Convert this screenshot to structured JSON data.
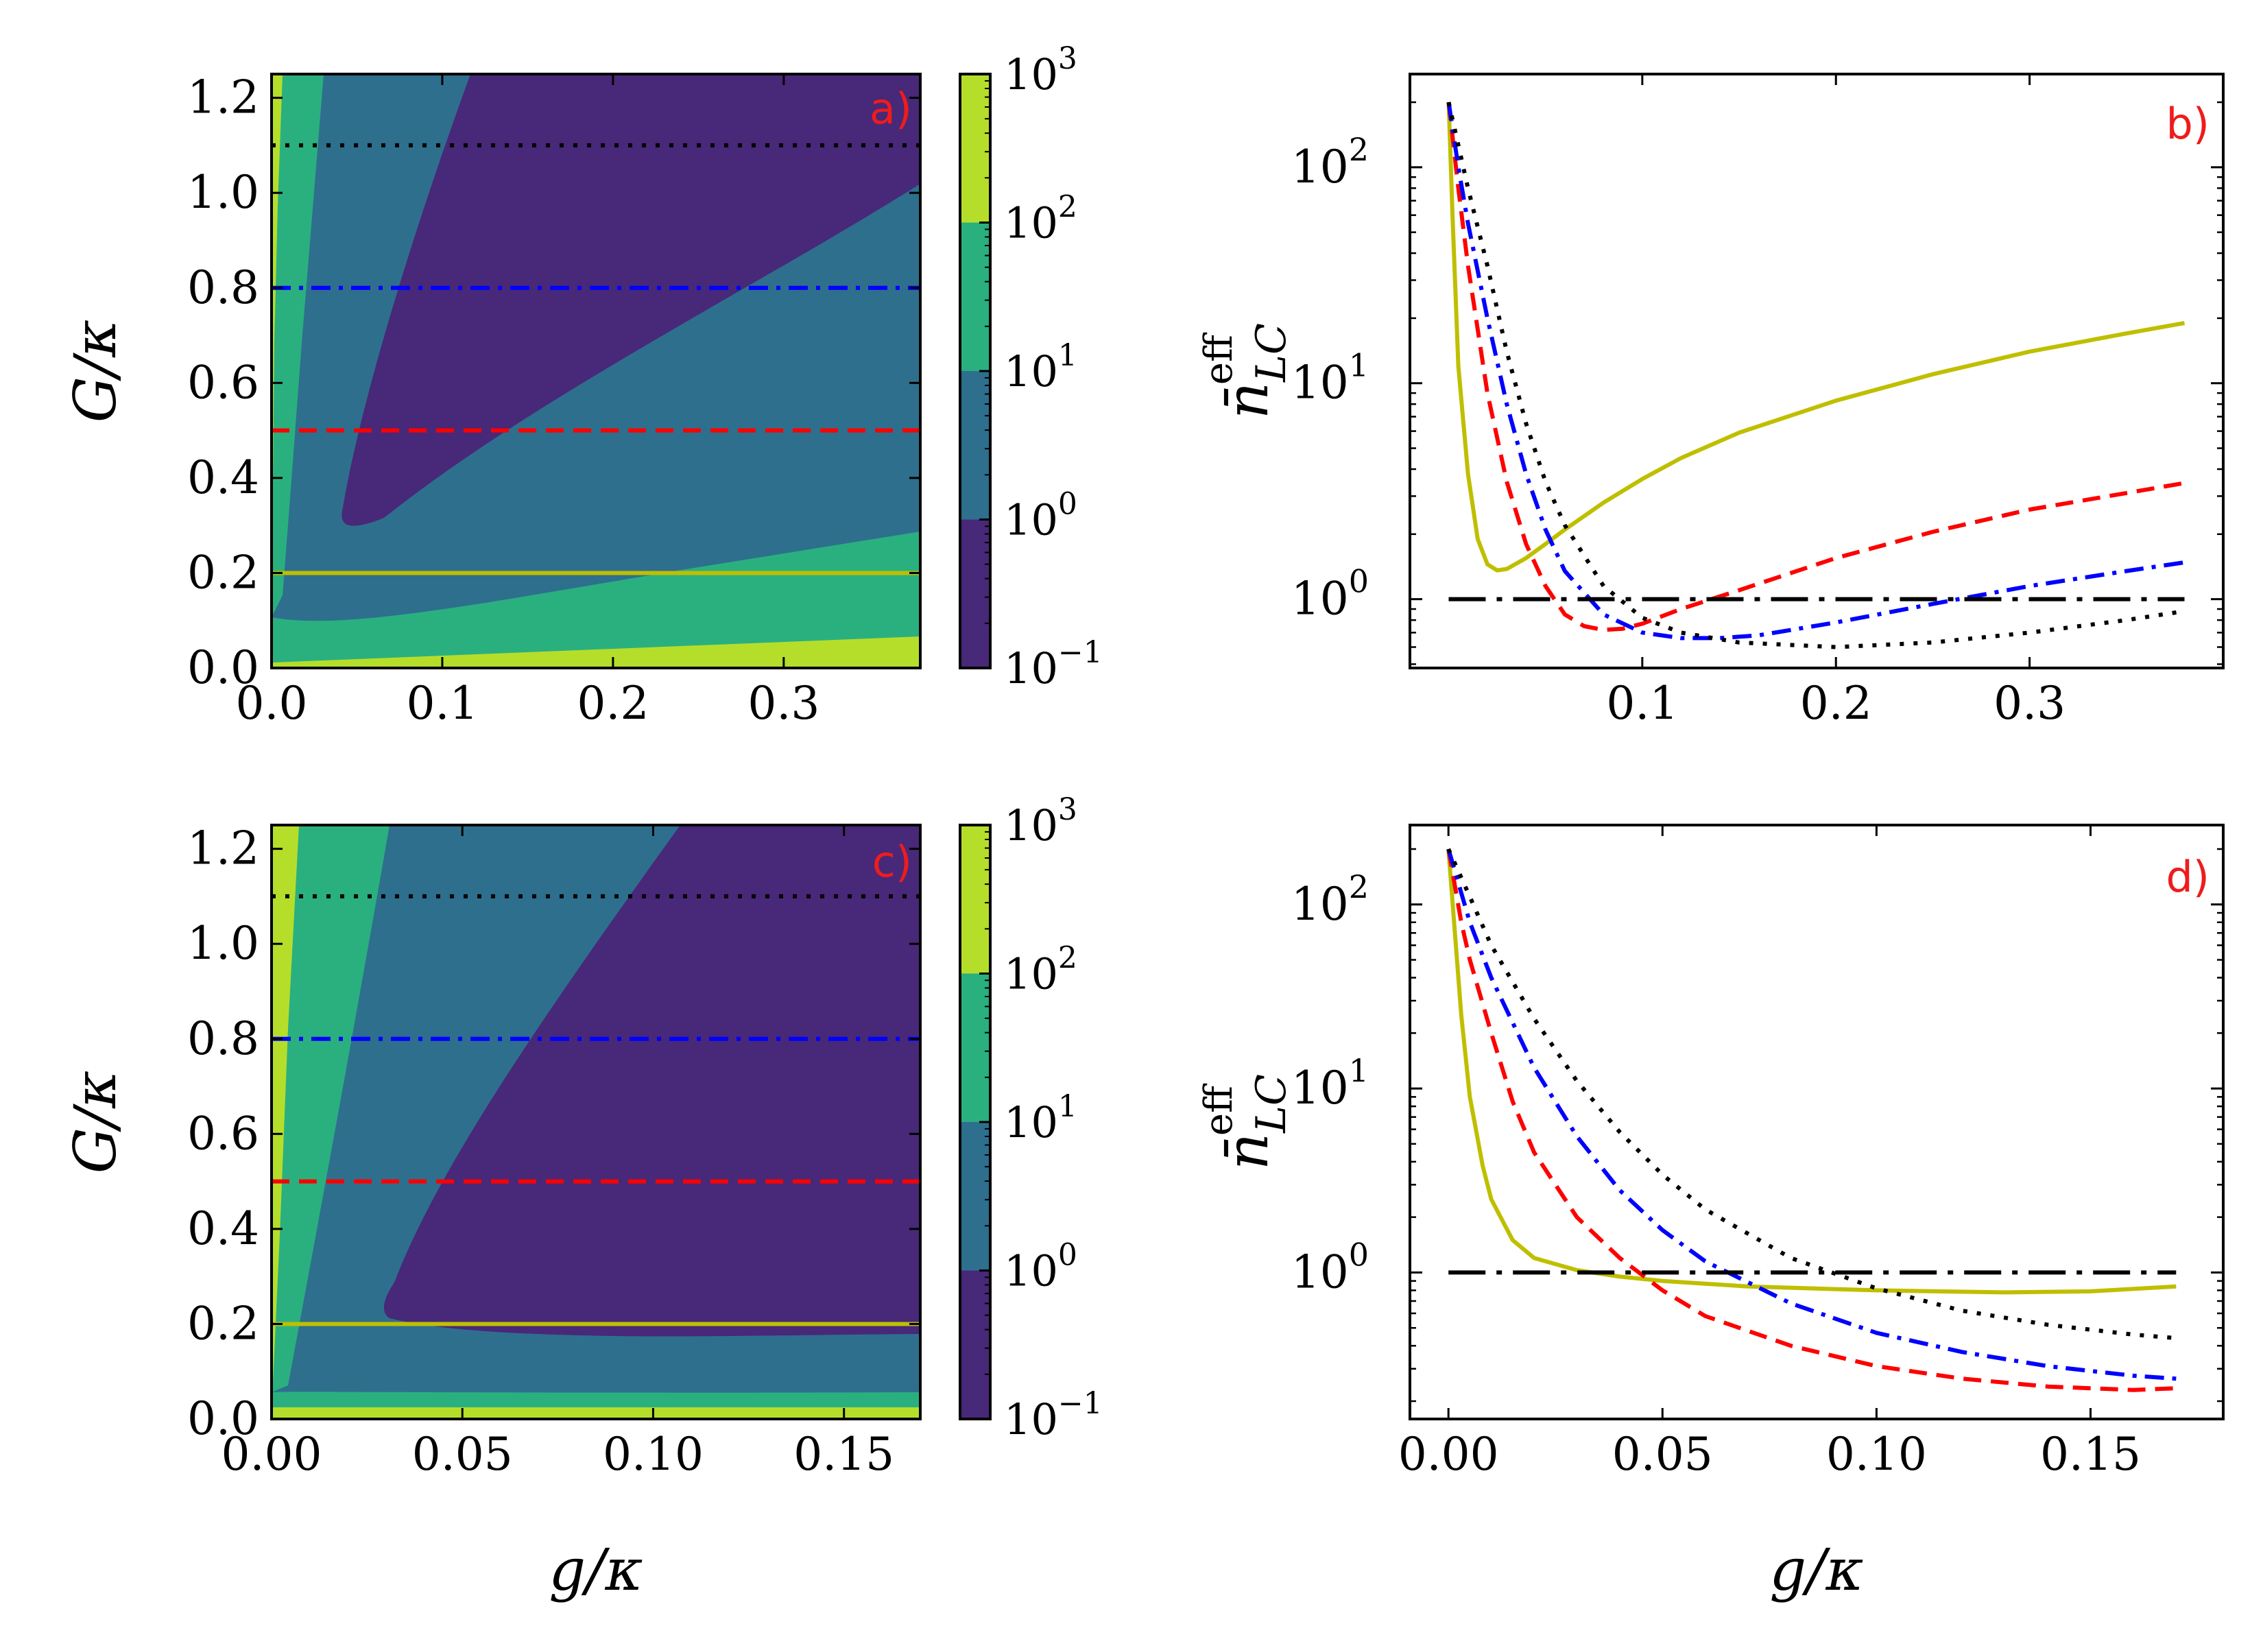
{
  "chart_data": [
    {
      "panel": "a)",
      "type": "heatmap",
      "xlabel": "g/κ",
      "ylabel": "G/κ",
      "xlim": [
        0,
        0.38
      ],
      "ylim": [
        0,
        1.25
      ],
      "xticks": [
        "0.0",
        "0.1",
        "0.2",
        "0.3"
      ],
      "xtick_values": [
        0,
        0.1,
        0.2,
        0.3
      ],
      "yticks": [
        "0.0",
        "0.2",
        "0.4",
        "0.6",
        "0.8",
        "1.0",
        "1.2"
      ],
      "ytick_values": [
        0,
        0.2,
        0.4,
        0.6,
        0.8,
        1.0,
        1.2
      ],
      "colorbar": {
        "scale": "log",
        "range": [
          0.1,
          1000
        ],
        "levels": [
          0.1,
          1,
          10,
          100,
          1000
        ],
        "tick_base": "10",
        "tick_exponents": [
          "−1",
          "0",
          "1",
          "2",
          "3"
        ]
      },
      "contour_bands": [
        {
          "level": "10^2-10^3",
          "color": "#b5de2b",
          "boundary_lower": [
            [
              0.0,
              0.0
            ],
            [
              0.38,
              0.0
            ],
            [
              0.38,
              0.065
            ],
            [
              0.0,
              0.02
            ]
          ]
        },
        {
          "level": "10^1-10^2",
          "color": "#2ab07f",
          "boundary_upper_right_x_at_top": 0.031
        },
        {
          "level": "10^0-10^1",
          "color": "#2e6f8e"
        },
        {
          "level": "10^-1-10^0",
          "color": "#482878",
          "region_vertices": [
            [
              0.044,
              0.3
            ],
            [
              0.06,
              0.56
            ],
            [
              0.08,
              0.8
            ],
            [
              0.112,
              1.25
            ],
            [
              0.38,
              1.25
            ],
            [
              0.38,
              1.02
            ],
            [
              0.2,
              0.68
            ],
            [
              0.1,
              0.44
            ]
          ]
        }
      ],
      "hlines": [
        {
          "y": 1.1,
          "color": "#000000",
          "style": "dotted"
        },
        {
          "y": 0.8,
          "color": "#0000ff",
          "style": "dashdot"
        },
        {
          "y": 0.5,
          "color": "#ff0000",
          "style": "dashed"
        },
        {
          "y": 0.2,
          "color": "#bfbf00",
          "style": "solid"
        }
      ]
    },
    {
      "panel": "b)",
      "type": "line",
      "xlabel": "",
      "ylabel": "n̄_LC^eff",
      "xlim": [
        -0.02,
        0.4
      ],
      "ylim": [
        0.48,
        270
      ],
      "yscale": "log",
      "xticks": [
        "0.1",
        "0.2",
        "0.3"
      ],
      "xtick_values": [
        0.1,
        0.2,
        0.3
      ],
      "yticks_base": "10",
      "yticks_exponents": [
        "0",
        "1",
        "2"
      ],
      "ytick_values": [
        1,
        10,
        100
      ],
      "series": [
        {
          "color": "#bfbf00",
          "style": "solid",
          "G_over_kappa": 0.2,
          "points": [
            [
              0.0,
              200
            ],
            [
              0.002,
              60
            ],
            [
              0.005,
              12
            ],
            [
              0.01,
              3.8
            ],
            [
              0.015,
              1.9
            ],
            [
              0.02,
              1.45
            ],
            [
              0.025,
              1.36
            ],
            [
              0.03,
              1.38
            ],
            [
              0.04,
              1.55
            ],
            [
              0.05,
              1.8
            ],
            [
              0.06,
              2.1
            ],
            [
              0.08,
              2.8
            ],
            [
              0.1,
              3.6
            ],
            [
              0.12,
              4.5
            ],
            [
              0.15,
              5.9
            ],
            [
              0.2,
              8.3
            ],
            [
              0.25,
              11.0
            ],
            [
              0.3,
              14.0
            ],
            [
              0.35,
              17.0
            ],
            [
              0.38,
              19.0
            ]
          ]
        },
        {
          "color": "#ff0000",
          "style": "dashed",
          "G_over_kappa": 0.5,
          "points": [
            [
              0.0,
              200
            ],
            [
              0.005,
              80
            ],
            [
              0.01,
              35
            ],
            [
              0.02,
              9
            ],
            [
              0.03,
              3.5
            ],
            [
              0.04,
              1.8
            ],
            [
              0.05,
              1.15
            ],
            [
              0.06,
              0.85
            ],
            [
              0.07,
              0.75
            ],
            [
              0.08,
              0.72
            ],
            [
              0.09,
              0.73
            ],
            [
              0.1,
              0.77
            ],
            [
              0.12,
              0.9
            ],
            [
              0.15,
              1.1
            ],
            [
              0.2,
              1.55
            ],
            [
              0.25,
              2.05
            ],
            [
              0.3,
              2.6
            ],
            [
              0.35,
              3.1
            ],
            [
              0.38,
              3.45
            ]
          ]
        },
        {
          "color": "#0000ff",
          "style": "dashdot",
          "G_over_kappa": 0.8,
          "points": [
            [
              0.0,
              200
            ],
            [
              0.005,
              100
            ],
            [
              0.01,
              55
            ],
            [
              0.02,
              20
            ],
            [
              0.03,
              8
            ],
            [
              0.04,
              3.8
            ],
            [
              0.05,
              2.1
            ],
            [
              0.06,
              1.35
            ],
            [
              0.08,
              0.85
            ],
            [
              0.1,
              0.7
            ],
            [
              0.12,
              0.66
            ],
            [
              0.14,
              0.66
            ],
            [
              0.16,
              0.68
            ],
            [
              0.2,
              0.78
            ],
            [
              0.25,
              0.95
            ],
            [
              0.3,
              1.15
            ],
            [
              0.35,
              1.35
            ],
            [
              0.38,
              1.48
            ]
          ]
        },
        {
          "color": "#000000",
          "style": "dotted",
          "G_over_kappa": 1.1,
          "points": [
            [
              0.0,
              200
            ],
            [
              0.01,
              80
            ],
            [
              0.02,
              35
            ],
            [
              0.03,
              14
            ],
            [
              0.04,
              6.5
            ],
            [
              0.05,
              3.5
            ],
            [
              0.06,
              2.2
            ],
            [
              0.08,
              1.15
            ],
            [
              0.1,
              0.82
            ],
            [
              0.12,
              0.7
            ],
            [
              0.15,
              0.63
            ],
            [
              0.2,
              0.6
            ],
            [
              0.25,
              0.63
            ],
            [
              0.3,
              0.7
            ],
            [
              0.35,
              0.8
            ],
            [
              0.38,
              0.88
            ]
          ]
        },
        {
          "color": "#000000",
          "style": "longdashdot",
          "reference": true,
          "points": [
            [
              0.0,
              1.0
            ],
            [
              0.38,
              1.0
            ]
          ]
        }
      ]
    },
    {
      "panel": "c)",
      "type": "heatmap",
      "xlabel": "g/κ",
      "ylabel": "G/κ",
      "xlim": [
        0,
        0.17
      ],
      "ylim": [
        0,
        1.25
      ],
      "xticks": [
        "0.00",
        "0.05",
        "0.10",
        "0.15"
      ],
      "xtick_values": [
        0,
        0.05,
        0.1,
        0.15
      ],
      "yticks": [
        "0.0",
        "0.2",
        "0.4",
        "0.6",
        "0.8",
        "1.0",
        "1.2"
      ],
      "ytick_values": [
        0,
        0.2,
        0.4,
        0.6,
        0.8,
        1.0,
        1.2
      ],
      "colorbar": {
        "scale": "log",
        "range": [
          0.1,
          1000
        ],
        "levels": [
          0.1,
          1,
          10,
          100,
          1000
        ],
        "tick_base": "10",
        "tick_exponents": [
          "−1",
          "0",
          "1",
          "2",
          "3"
        ]
      },
      "contour_bands": [
        {
          "level": "10^2-10^3",
          "color": "#b5de2b"
        },
        {
          "level": "10^1-10^2",
          "color": "#2ab07f"
        },
        {
          "level": "10^0-10^1",
          "color": "#2e6f8e"
        },
        {
          "level": "10^-1-10^0",
          "color": "#482878",
          "region_vertices": [
            [
              0.031,
              0.235
            ],
            [
              0.035,
              0.32
            ],
            [
              0.05,
              0.52
            ],
            [
              0.07,
              0.85
            ],
            [
              0.1,
              1.25
            ],
            [
              0.17,
              1.25
            ],
            [
              0.17,
              0.18
            ],
            [
              0.1,
              0.18
            ],
            [
              0.04,
              0.2
            ]
          ]
        }
      ],
      "hlines": [
        {
          "y": 1.1,
          "color": "#000000",
          "style": "dotted"
        },
        {
          "y": 0.8,
          "color": "#0000ff",
          "style": "dashdot"
        },
        {
          "y": 0.5,
          "color": "#ff0000",
          "style": "dashed"
        },
        {
          "y": 0.2,
          "color": "#bfbf00",
          "style": "solid"
        }
      ]
    },
    {
      "panel": "d)",
      "type": "line",
      "xlabel": "g/κ",
      "ylabel": "n̄_LC^eff",
      "xlim": [
        -0.009,
        0.181
      ],
      "ylim": [
        0.16,
        270
      ],
      "yscale": "log",
      "xticks": [
        "0.00",
        "0.05",
        "0.10",
        "0.15"
      ],
      "xtick_values": [
        0,
        0.05,
        0.1,
        0.15
      ],
      "yticks_base": "10",
      "yticks_exponents": [
        "0",
        "1",
        "2"
      ],
      "ytick_values": [
        1,
        10,
        100
      ],
      "series": [
        {
          "color": "#bfbf00",
          "style": "solid",
          "G_over_kappa": 0.2,
          "points": [
            [
              0.0,
              200
            ],
            [
              0.001,
              100
            ],
            [
              0.003,
              25
            ],
            [
              0.005,
              9
            ],
            [
              0.008,
              3.8
            ],
            [
              0.01,
              2.5
            ],
            [
              0.015,
              1.5
            ],
            [
              0.02,
              1.2
            ],
            [
              0.03,
              1.03
            ],
            [
              0.04,
              0.95
            ],
            [
              0.05,
              0.9
            ],
            [
              0.07,
              0.84
            ],
            [
              0.1,
              0.8
            ],
            [
              0.13,
              0.78
            ],
            [
              0.15,
              0.79
            ],
            [
              0.17,
              0.84
            ]
          ]
        },
        {
          "color": "#ff0000",
          "style": "dashed",
          "G_over_kappa": 0.5,
          "points": [
            [
              0.0,
              200
            ],
            [
              0.003,
              80
            ],
            [
              0.005,
              50
            ],
            [
              0.01,
              20
            ],
            [
              0.015,
              8.5
            ],
            [
              0.02,
              4.5
            ],
            [
              0.03,
              2.0
            ],
            [
              0.04,
              1.2
            ],
            [
              0.05,
              0.8
            ],
            [
              0.06,
              0.58
            ],
            [
              0.08,
              0.4
            ],
            [
              0.1,
              0.31
            ],
            [
              0.12,
              0.265
            ],
            [
              0.14,
              0.24
            ],
            [
              0.16,
              0.23
            ],
            [
              0.17,
              0.235
            ]
          ]
        },
        {
          "color": "#0000ff",
          "style": "dashdot",
          "G_over_kappa": 0.8,
          "points": [
            [
              0.0,
              200
            ],
            [
              0.005,
              80
            ],
            [
              0.01,
              40
            ],
            [
              0.02,
              13
            ],
            [
              0.03,
              5.5
            ],
            [
              0.04,
              2.8
            ],
            [
              0.05,
              1.7
            ],
            [
              0.06,
              1.15
            ],
            [
              0.08,
              0.68
            ],
            [
              0.1,
              0.47
            ],
            [
              0.12,
              0.37
            ],
            [
              0.14,
              0.31
            ],
            [
              0.16,
              0.275
            ],
            [
              0.17,
              0.265
            ]
          ]
        },
        {
          "color": "#000000",
          "style": "dotted",
          "G_over_kappa": 1.1,
          "points": [
            [
              0.0,
              200
            ],
            [
              0.005,
              110
            ],
            [
              0.01,
              60
            ],
            [
              0.02,
              24
            ],
            [
              0.03,
              11
            ],
            [
              0.04,
              5.8
            ],
            [
              0.05,
              3.4
            ],
            [
              0.06,
              2.2
            ],
            [
              0.08,
              1.2
            ],
            [
              0.1,
              0.82
            ],
            [
              0.12,
              0.62
            ],
            [
              0.14,
              0.52
            ],
            [
              0.16,
              0.46
            ],
            [
              0.17,
              0.44
            ]
          ]
        },
        {
          "color": "#000000",
          "style": "longdashdot",
          "reference": true,
          "points": [
            [
              0.0,
              1.0
            ],
            [
              0.17,
              1.0
            ]
          ]
        }
      ]
    }
  ]
}
